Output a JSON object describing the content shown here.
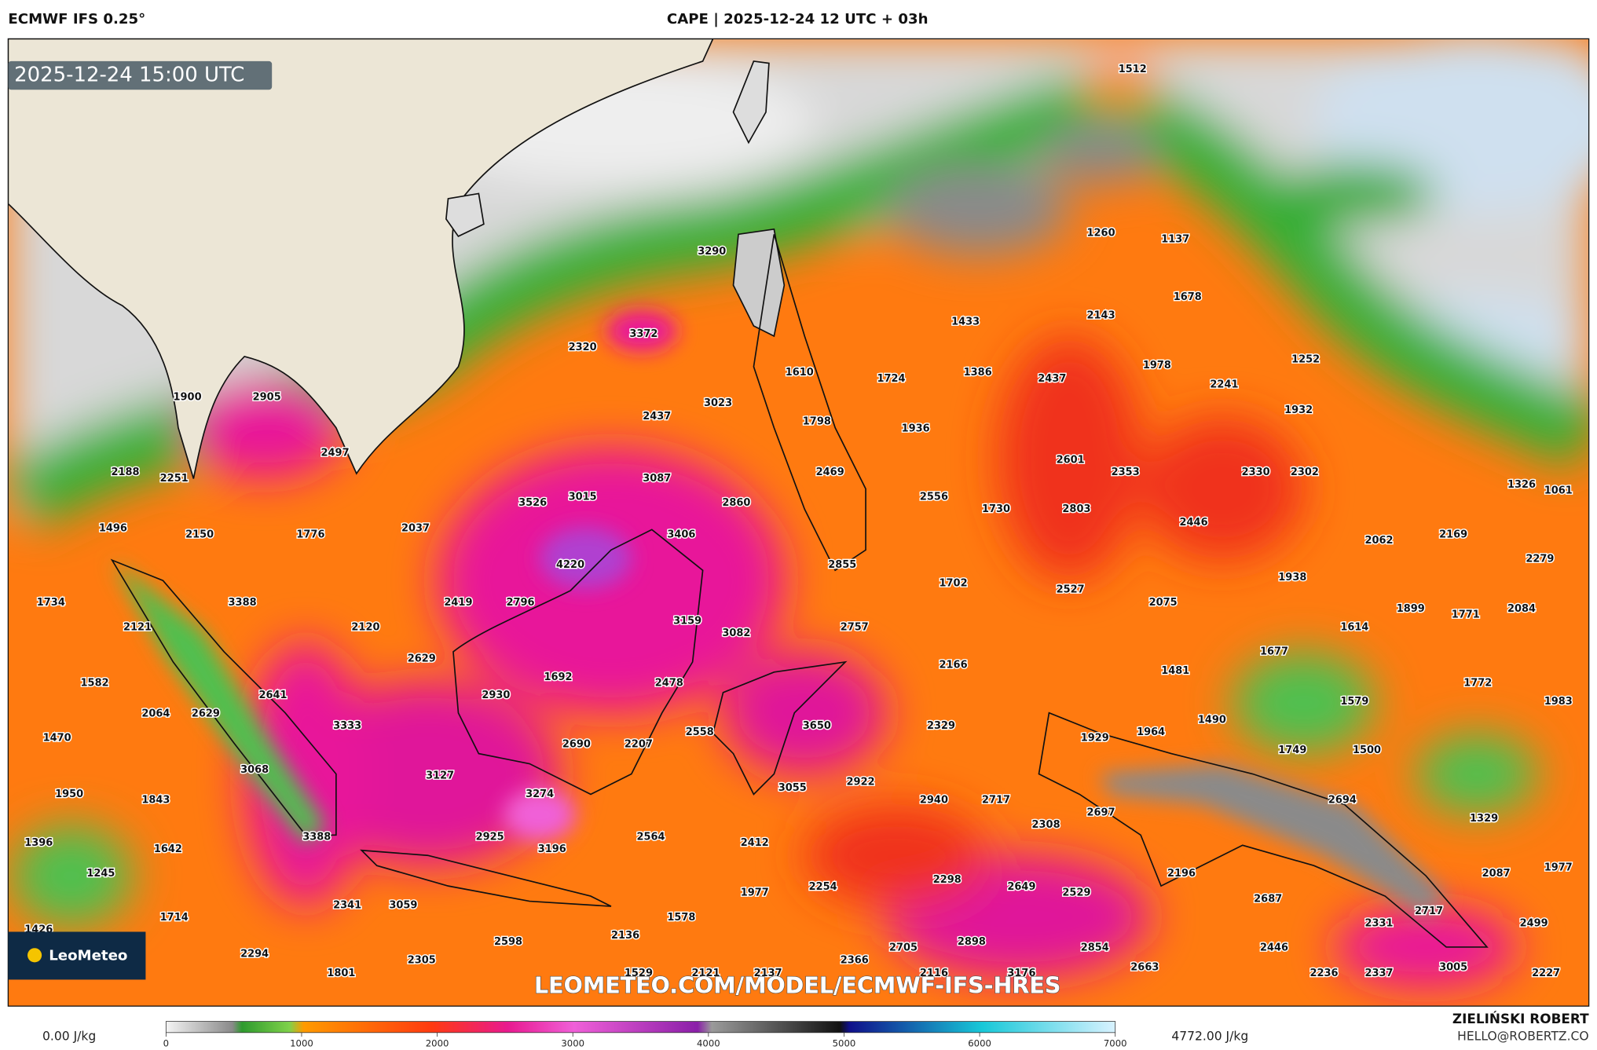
{
  "header": {
    "left": "ECMWF IFS 0.25°",
    "title": "CAPE | 2025-12-24 12 UTC + 03h"
  },
  "map": {
    "valid_time": "2025-12-24 15:00 UTC",
    "logo": "LeoMeteo",
    "watermark": "LEOMETEO.COM/MODEL/ECMWF-IFS-HRES",
    "values": [
      1512,
      3290,
      1260,
      1137,
      3372,
      2320,
      1678,
      1433,
      2143,
      1252,
      2437,
      1978,
      2241,
      1610,
      1724,
      1386,
      1900,
      2905,
      3023,
      2437,
      1932,
      1798,
      1936,
      2497,
      2188,
      2251,
      2469,
      2601,
      2353,
      2330,
      2302,
      3087,
      1326,
      1061,
      3526,
      3015,
      2860,
      2556,
      1730,
      2803,
      2446,
      1496,
      2150,
      1776,
      2037,
      3406,
      2062,
      2169,
      4220,
      2855,
      2279,
      1938,
      1702,
      2527,
      1734,
      3388,
      2419,
      2796,
      2075,
      1899,
      1771,
      2084,
      2121,
      2120,
      3159,
      3082,
      2757,
      1614,
      2629,
      1677,
      2166,
      1582,
      1692,
      2478,
      1481,
      1772,
      2641,
      2930,
      1579,
      1983,
      2064,
      2629,
      3333,
      2558,
      3650,
      2329,
      1929,
      1964,
      1490,
      1470,
      2690,
      2207,
      1749,
      1500,
      3068,
      3127,
      2922,
      3055,
      1950,
      3274,
      2940,
      2717,
      2694,
      1843,
      2697,
      2308,
      1329,
      1396,
      3388,
      2925,
      2564,
      2412,
      3196,
      1642,
      1245,
      2087,
      1977,
      2196,
      2298,
      2649,
      2529,
      2254,
      1977,
      2687,
      2341,
      3059,
      1714,
      1578,
      2717,
      2331,
      2499,
      1426,
      2136,
      2598,
      2705,
      2898,
      2854,
      2446,
      2294,
      2305,
      2366,
      3005,
      2663,
      1801,
      1529,
      2121,
      2137,
      2116,
      3176,
      2236,
      2337,
      2227
    ]
  },
  "colorbar": {
    "min_label": "0.00 J/kg",
    "max_label": "4772.00 J/kg",
    "range": [
      0,
      7000
    ],
    "ticks": [
      0,
      1000,
      2000,
      3000,
      4000,
      5000,
      6000,
      7000
    ]
  },
  "footer": {
    "author": "ZIELIŃSKI ROBERT",
    "email": "HELLO@ROBERTZ.CO"
  }
}
